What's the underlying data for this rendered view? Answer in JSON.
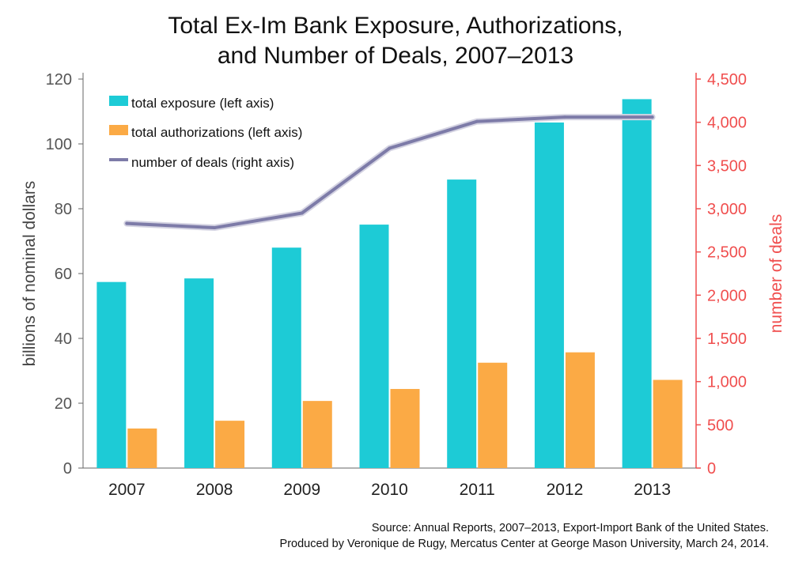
{
  "title_line1": "Total Ex-Im Bank Exposure, Authorizations,",
  "title_line2": "and Number of Deals, 2007–2013",
  "source_line1": "Source: Annual Reports, 2007–2013, Export-Import Bank of the United States.",
  "source_line2": "Produced by Veronique de Rugy, Mercatus Center at George Mason University, March 24, 2014.",
  "colors": {
    "exposure": "#1dcbd6",
    "authorizations": "#fbaa45",
    "deals": "#7d7ba8",
    "right_axis": "#f04e4e"
  },
  "chart_data": {
    "type": "bar",
    "title": "Total Ex-Im Bank Exposure, Authorizations, and Number of Deals, 2007–2013",
    "categories": [
      "2007",
      "2008",
      "2009",
      "2010",
      "2011",
      "2012",
      "2013"
    ],
    "ylabel": "billions of nominal dollars",
    "y2label": "number of deals",
    "ylim": [
      0,
      120
    ],
    "y2lim": [
      0,
      4500
    ],
    "yticks": [
      "0",
      "20",
      "40",
      "60",
      "80",
      "100",
      "120"
    ],
    "y2ticks": [
      "0",
      "500",
      "1,000",
      "1,500",
      "2,000",
      "2,500",
      "3,000",
      "3,500",
      "4,000",
      "4,500"
    ],
    "legend_position": "top-left",
    "grid": false,
    "series": [
      {
        "name": "total exposure (left axis)",
        "type": "bar",
        "axis": "left",
        "values": [
          57.4,
          58.5,
          68.0,
          75.1,
          89.0,
          106.6,
          113.8
        ]
      },
      {
        "name": "total authorizations (left axis)",
        "type": "bar",
        "axis": "left",
        "values": [
          12.2,
          14.6,
          20.7,
          24.4,
          32.5,
          35.7,
          27.2
        ]
      },
      {
        "name": "number of deals (right axis)",
        "type": "line",
        "axis": "right",
        "values": [
          2830,
          2780,
          2950,
          3700,
          4010,
          4060,
          4060
        ]
      }
    ]
  }
}
